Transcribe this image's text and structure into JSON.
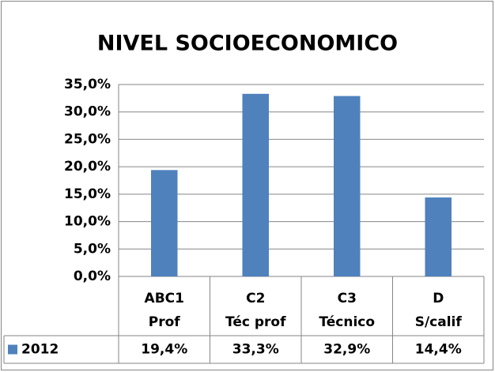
{
  "chart_data": {
    "type": "bar",
    "title": "NIVEL SOCIOECONOMICO",
    "categories": [
      [
        "ABC1",
        "Prof"
      ],
      [
        "C2",
        "Téc prof"
      ],
      [
        "C3",
        "Técnico"
      ],
      [
        "D",
        "S/calif"
      ]
    ],
    "series": [
      {
        "name": "2012",
        "color": "#4f81bd",
        "values": [
          19.4,
          33.3,
          32.9,
          14.4
        ],
        "value_labels": [
          "19,4%",
          "33,3%",
          "32,9%",
          "14,4%"
        ]
      }
    ],
    "ylim": [
      0,
      35
    ],
    "yticks": [
      {
        "value": 0,
        "label": "0,0%"
      },
      {
        "value": 5,
        "label": "5,0%"
      },
      {
        "value": 10,
        "label": "10,0%"
      },
      {
        "value": 15,
        "label": "15,0%"
      },
      {
        "value": 20,
        "label": "20,0%"
      },
      {
        "value": 25,
        "label": "25,0%"
      },
      {
        "value": 30,
        "label": "30,0%"
      },
      {
        "value": 35,
        "label": "35,0%"
      }
    ],
    "grid": true,
    "data_table": true
  }
}
